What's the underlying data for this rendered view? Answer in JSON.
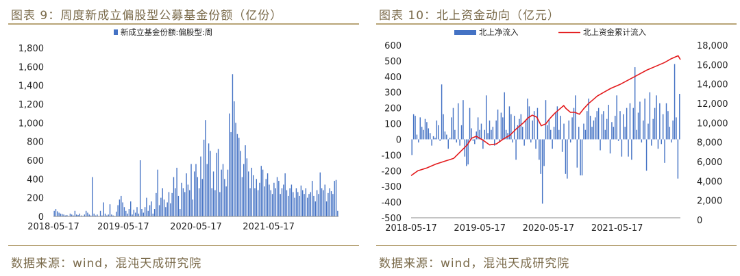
{
  "left_panel": {
    "title": "图表 9：周度新成立偏股型公募基金份额（亿份）",
    "source": "数据来源：wind，混沌天成研究院"
  },
  "right_panel": {
    "title": "图表 10：北上资金动向（亿元）",
    "source": "数据来源：wind，混沌天成研究院"
  },
  "colors": {
    "bar": "#4472c4",
    "line": "#e31a1c",
    "rule": "#b8a477",
    "title": "#7a6a4a"
  },
  "chart_data": [
    {
      "type": "bar",
      "title": "",
      "legend": [
        "新成立基金份额:偏股型:周"
      ],
      "legend_position": "top",
      "xlabel": "",
      "ylabel": "",
      "x_tick_labels": [
        "2018-05-17",
        "2019-05-17",
        "2020-05-17",
        "2021-05-17"
      ],
      "y_tick_labels": [
        "0",
        "200",
        "400",
        "600",
        "800",
        "1,000",
        "1,200",
        "1,400",
        "1,600",
        "1,800"
      ],
      "ylim": [
        0,
        1800
      ],
      "grid": false,
      "series": [
        {
          "name": "新成立基金份额:偏股型:周",
          "values": [
            60,
            80,
            55,
            40,
            30,
            25,
            20,
            10,
            15,
            5,
            30,
            20,
            10,
            60,
            20,
            15,
            30,
            10,
            5,
            20,
            60,
            40,
            20,
            10,
            420,
            30,
            10,
            20,
            5,
            60,
            10,
            150,
            30,
            10,
            20,
            130,
            20,
            10,
            5,
            50,
            120,
            180,
            220,
            150,
            100,
            60,
            30,
            80,
            160,
            20,
            70,
            40,
            100,
            30,
            600,
            80,
            40,
            100,
            200,
            60,
            120,
            160,
            30,
            80,
            250,
            500,
            120,
            200,
            300,
            180,
            100,
            150,
            260,
            140,
            250,
            420,
            300,
            520,
            220,
            80,
            360,
            300,
            260,
            460,
            340,
            280,
            560,
            180,
            480,
            560,
            420,
            300,
            640,
            400,
            820,
            1030,
            560,
            780,
            700,
            300,
            480,
            280,
            680,
            720,
            260,
            500,
            560,
            400,
            320,
            500,
            1100,
            900,
            1520,
            1230,
            1000,
            880,
            840,
            700,
            420,
            560,
            760,
            620,
            480,
            300,
            520,
            440,
            300,
            400,
            280,
            360,
            540,
            500,
            320,
            400,
            460,
            340,
            280,
            240,
            360,
            300,
            420,
            380,
            240,
            300,
            340,
            460,
            280,
            220,
            300,
            340,
            260,
            200,
            300,
            260,
            220,
            330,
            280,
            240,
            300,
            200,
            240,
            260,
            380,
            220,
            160,
            280,
            240,
            470,
            300,
            280,
            340,
            160,
            250,
            300,
            270,
            240,
            380,
            390,
            60
          ]
        }
      ]
    },
    {
      "type": "bar+line",
      "title": "",
      "legend": [
        "北上净流入",
        "北上资金累计流入"
      ],
      "legend_position": "top",
      "xlabel": "",
      "ylabel": "",
      "ylabel_right": "",
      "x_tick_labels": [
        "2018-05-17",
        "2019-05-17",
        "2020-05-17",
        "2021-05-17"
      ],
      "y_tick_labels_left": [
        "-500",
        "-400",
        "-300",
        "-200",
        "-100",
        "0",
        "100",
        "200",
        "300",
        "400",
        "500",
        "600"
      ],
      "y_tick_labels_right": [
        "0",
        "2,000",
        "4,000",
        "6,000",
        "8,000",
        "10,000",
        "12,000",
        "14,000",
        "16,000",
        "18,000"
      ],
      "ylim_left": [
        -500,
        600
      ],
      "ylim_right": [
        0,
        18000
      ],
      "grid": false,
      "series": [
        {
          "name": "北上净流入",
          "axis": "left",
          "values": [
            -100,
            160,
            150,
            30,
            -20,
            140,
            80,
            60,
            130,
            110,
            70,
            40,
            -40,
            20,
            10,
            120,
            90,
            -10,
            350,
            160,
            50,
            30,
            -60,
            10,
            140,
            200,
            60,
            -20,
            230,
            -40,
            90,
            250,
            -110,
            -170,
            -160,
            200,
            70,
            -10,
            -30,
            50,
            140,
            60,
            100,
            -60,
            60,
            280,
            40,
            120,
            60,
            80,
            -40,
            120,
            190,
            -20,
            170,
            140,
            300,
            60,
            40,
            210,
            160,
            -20,
            150,
            -130,
            90,
            130,
            160,
            80,
            -40,
            120,
            260,
            210,
            -20,
            120,
            180,
            -60,
            200,
            -130,
            -220,
            -410,
            -170,
            250,
            90,
            130,
            60,
            -60,
            80,
            170,
            210,
            60,
            150,
            -80,
            100,
            -220,
            -250,
            120,
            -20,
            140,
            200,
            280,
            -180,
            80,
            -230,
            -230,
            100,
            60,
            180,
            260,
            150,
            80,
            120,
            140,
            180,
            200,
            -70,
            160,
            180,
            60,
            130,
            220,
            -90,
            110,
            80,
            150,
            280,
            -10,
            180,
            -110,
            160,
            80,
            200,
            -110,
            230,
            -130,
            200,
            460,
            60,
            170,
            240,
            -20,
            120,
            260,
            -200,
            100,
            300,
            -40,
            130,
            200,
            280,
            -60,
            230,
            -30,
            160,
            -150,
            230,
            180,
            80,
            -20,
            120,
            480,
            140,
            -250,
            290
          ]
        },
        {
          "name": "北上资金累计流入",
          "axis": "right",
          "points": [
            [
              0,
              4400
            ],
            [
              6,
              4900
            ],
            [
              14,
              5200
            ],
            [
              22,
              5600
            ],
            [
              30,
              5900
            ],
            [
              38,
              6200
            ],
            [
              44,
              6900
            ],
            [
              50,
              7600
            ],
            [
              54,
              8300
            ],
            [
              58,
              8500
            ],
            [
              64,
              8100
            ],
            [
              70,
              7600
            ],
            [
              76,
              7700
            ],
            [
              82,
              8200
            ],
            [
              88,
              8600
            ],
            [
              94,
              9300
            ],
            [
              100,
              9900
            ],
            [
              104,
              10400
            ],
            [
              108,
              10700
            ],
            [
              112,
              10500
            ],
            [
              116,
              9600
            ],
            [
              120,
              9800
            ],
            [
              124,
              10400
            ],
            [
              128,
              10900
            ],
            [
              132,
              11300
            ],
            [
              136,
              11700
            ],
            [
              138,
              11400
            ],
            [
              142,
              11000
            ],
            [
              146,
              11000
            ],
            [
              150,
              10800
            ],
            [
              154,
              11400
            ],
            [
              158,
              11900
            ],
            [
              162,
              12300
            ],
            [
              166,
              12700
            ],
            [
              172,
              13100
            ],
            [
              178,
              13500
            ],
            [
              186,
              13900
            ],
            [
              194,
              14400
            ],
            [
              202,
              14900
            ],
            [
              210,
              15400
            ],
            [
              218,
              15800
            ],
            [
              226,
              16200
            ],
            [
              232,
              16600
            ],
            [
              238,
              16900
            ],
            [
              240,
              16500
            ]
          ]
        }
      ]
    }
  ]
}
